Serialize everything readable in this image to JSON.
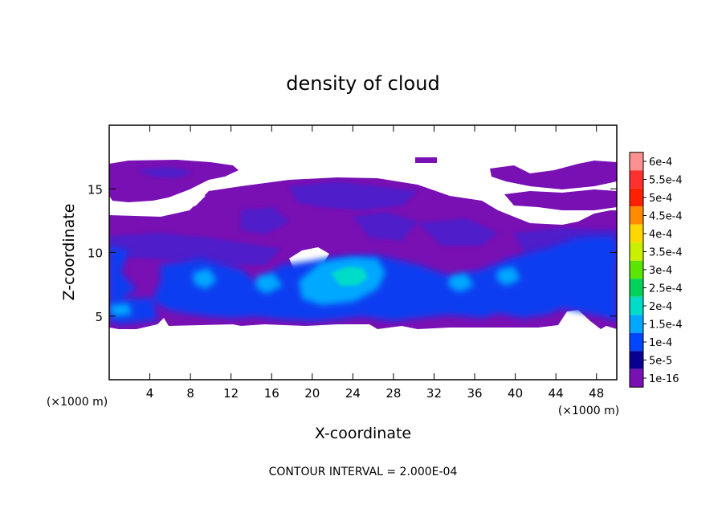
{
  "chart_data": {
    "type": "heatmap",
    "title": "density of cloud",
    "xlabel": "X-coordinate",
    "ylabel": "Z-coordinate",
    "x_unit": "(×1000 m)",
    "y_unit": "(×1000 m)",
    "x_ticks": [
      4,
      8,
      12,
      16,
      20,
      24,
      28,
      32,
      36,
      40,
      44,
      48
    ],
    "y_ticks": [
      5,
      10,
      15
    ],
    "xlim": [
      0,
      50
    ],
    "ylim": [
      0,
      20
    ],
    "note": "CONTOUR INTERVAL = 2.000E-04",
    "colorbar": {
      "labels": [
        "6e-4",
        "5.5e-4",
        "5e-4",
        "4.5e-4",
        "4e-4",
        "3.5e-4",
        "3e-4",
        "2.5e-4",
        "2e-4",
        "1.5e-4",
        "1e-4",
        "5e-5",
        "1e-16"
      ],
      "colors": [
        "#ff9090",
        "#ff3030",
        "#ff2000",
        "#ff8c00",
        "#ffd700",
        "#c8f000",
        "#5ae600",
        "#00d25a",
        "#00dcc8",
        "#00a8ff",
        "#0046ff",
        "#0a0090",
        "#7810b4"
      ]
    },
    "cloud_layers": [
      {
        "level": "1e-16",
        "color": "#7810b4",
        "approx_z_range": [
          4,
          17
        ]
      },
      {
        "level": "5e-5",
        "color": "#4a1ccc",
        "approx_z_range": [
          4,
          16
        ]
      },
      {
        "level": "1e-4",
        "color": "#0a3cf0",
        "approx_z_range": [
          4.5,
          11
        ]
      },
      {
        "level": "1.5e-4",
        "color": "#00a8ff",
        "approx_z_range": [
          6.5,
          9.5
        ]
      },
      {
        "level": "2e-4",
        "color": "#00dcc8",
        "approx_z_range": [
          7,
          9
        ]
      }
    ]
  }
}
